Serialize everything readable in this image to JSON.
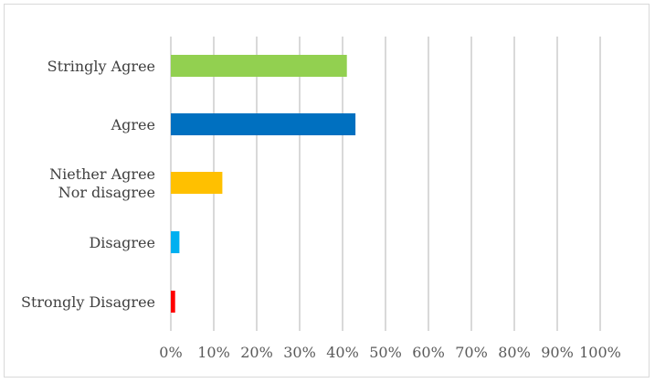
{
  "chart_data": {
    "type": "bar",
    "orientation": "horizontal",
    "categories": [
      [
        "Stringly Agree"
      ],
      [
        "Agree"
      ],
      [
        "Niether Agree",
        "Nor disagree"
      ],
      [
        "Disagree"
      ],
      [
        "Strongly Disagree"
      ]
    ],
    "values": [
      41,
      43,
      12,
      2,
      1
    ],
    "colors": [
      "#92d050",
      "#0070c0",
      "#ffc000",
      "#00b0f0",
      "#ff0000"
    ],
    "xlim": [
      0,
      100
    ],
    "x_ticks": [
      "0%",
      "10%",
      "20%",
      "30%",
      "40%",
      "50%",
      "60%",
      "70%",
      "80%",
      "90%",
      "100%"
    ],
    "grid": true,
    "legend": "none"
  }
}
